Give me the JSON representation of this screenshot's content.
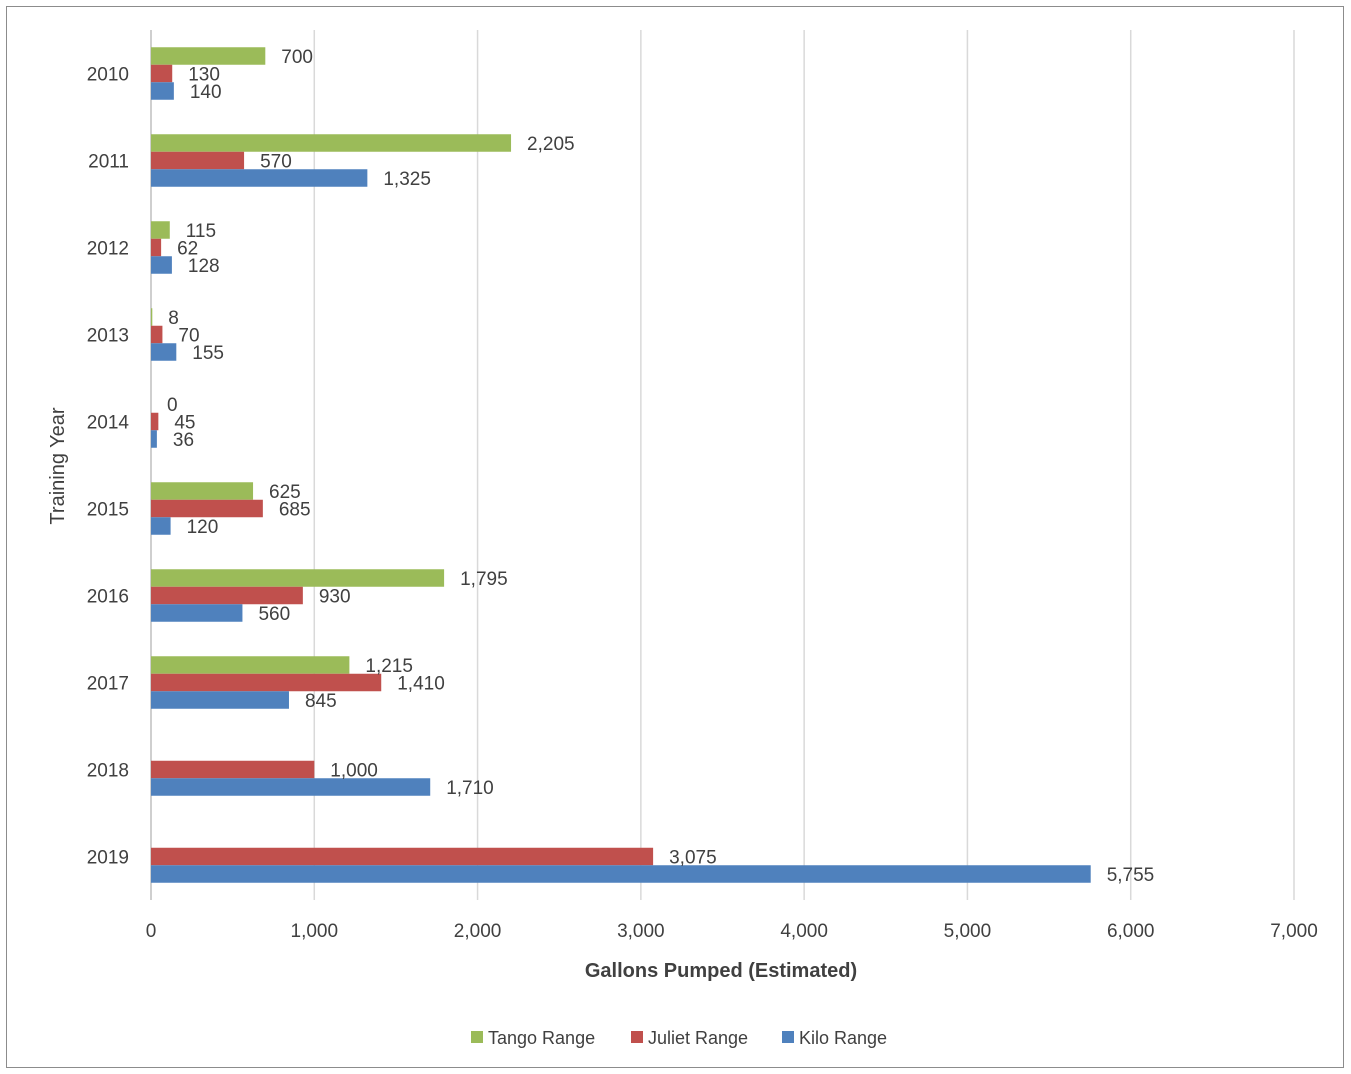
{
  "chart_data": {
    "type": "bar",
    "orientation": "horizontal",
    "categories": [
      "2010",
      "2011",
      "2012",
      "2013",
      "2014",
      "2015",
      "2016",
      "2017",
      "2018",
      "2019"
    ],
    "series": [
      {
        "name": "Tango Range",
        "color": "#9bbb59",
        "values": [
          700,
          2205,
          115,
          8,
          0,
          625,
          1795,
          1215,
          null,
          null
        ],
        "labels": [
          "700",
          "2,205",
          "115",
          "8",
          "0",
          "625",
          "1,795",
          "1,215",
          "",
          ""
        ]
      },
      {
        "name": "Juliet Range",
        "color": "#c0504d",
        "values": [
          130,
          570,
          62,
          70,
          45,
          685,
          930,
          1410,
          1000,
          3075
        ],
        "labels": [
          "130",
          "570",
          "62",
          "70",
          "45",
          "685",
          "930",
          "1,410",
          "1,000",
          "3,075"
        ]
      },
      {
        "name": "Kilo Range",
        "color": "#4f81bd",
        "values": [
          140,
          1325,
          128,
          155,
          36,
          120,
          560,
          845,
          1710,
          5755
        ],
        "labels": [
          "140",
          "1,325",
          "128",
          "155",
          "36",
          "120",
          "560",
          "845",
          "1,710",
          "5,755"
        ]
      }
    ],
    "xlim": [
      0,
      7000
    ],
    "xticks": [
      0,
      1000,
      2000,
      3000,
      4000,
      5000,
      6000,
      7000
    ],
    "xtick_labels": [
      "0",
      "1,000",
      "2,000",
      "3,000",
      "4,000",
      "5,000",
      "6,000",
      "7,000"
    ],
    "xlabel": "Gallons Pumped (Estimated)",
    "ylabel": "Training Year",
    "grid": "vertical",
    "legend": "bottom",
    "legend_order": [
      "Tango Range",
      "Juliet Range",
      "Kilo Range"
    ]
  }
}
